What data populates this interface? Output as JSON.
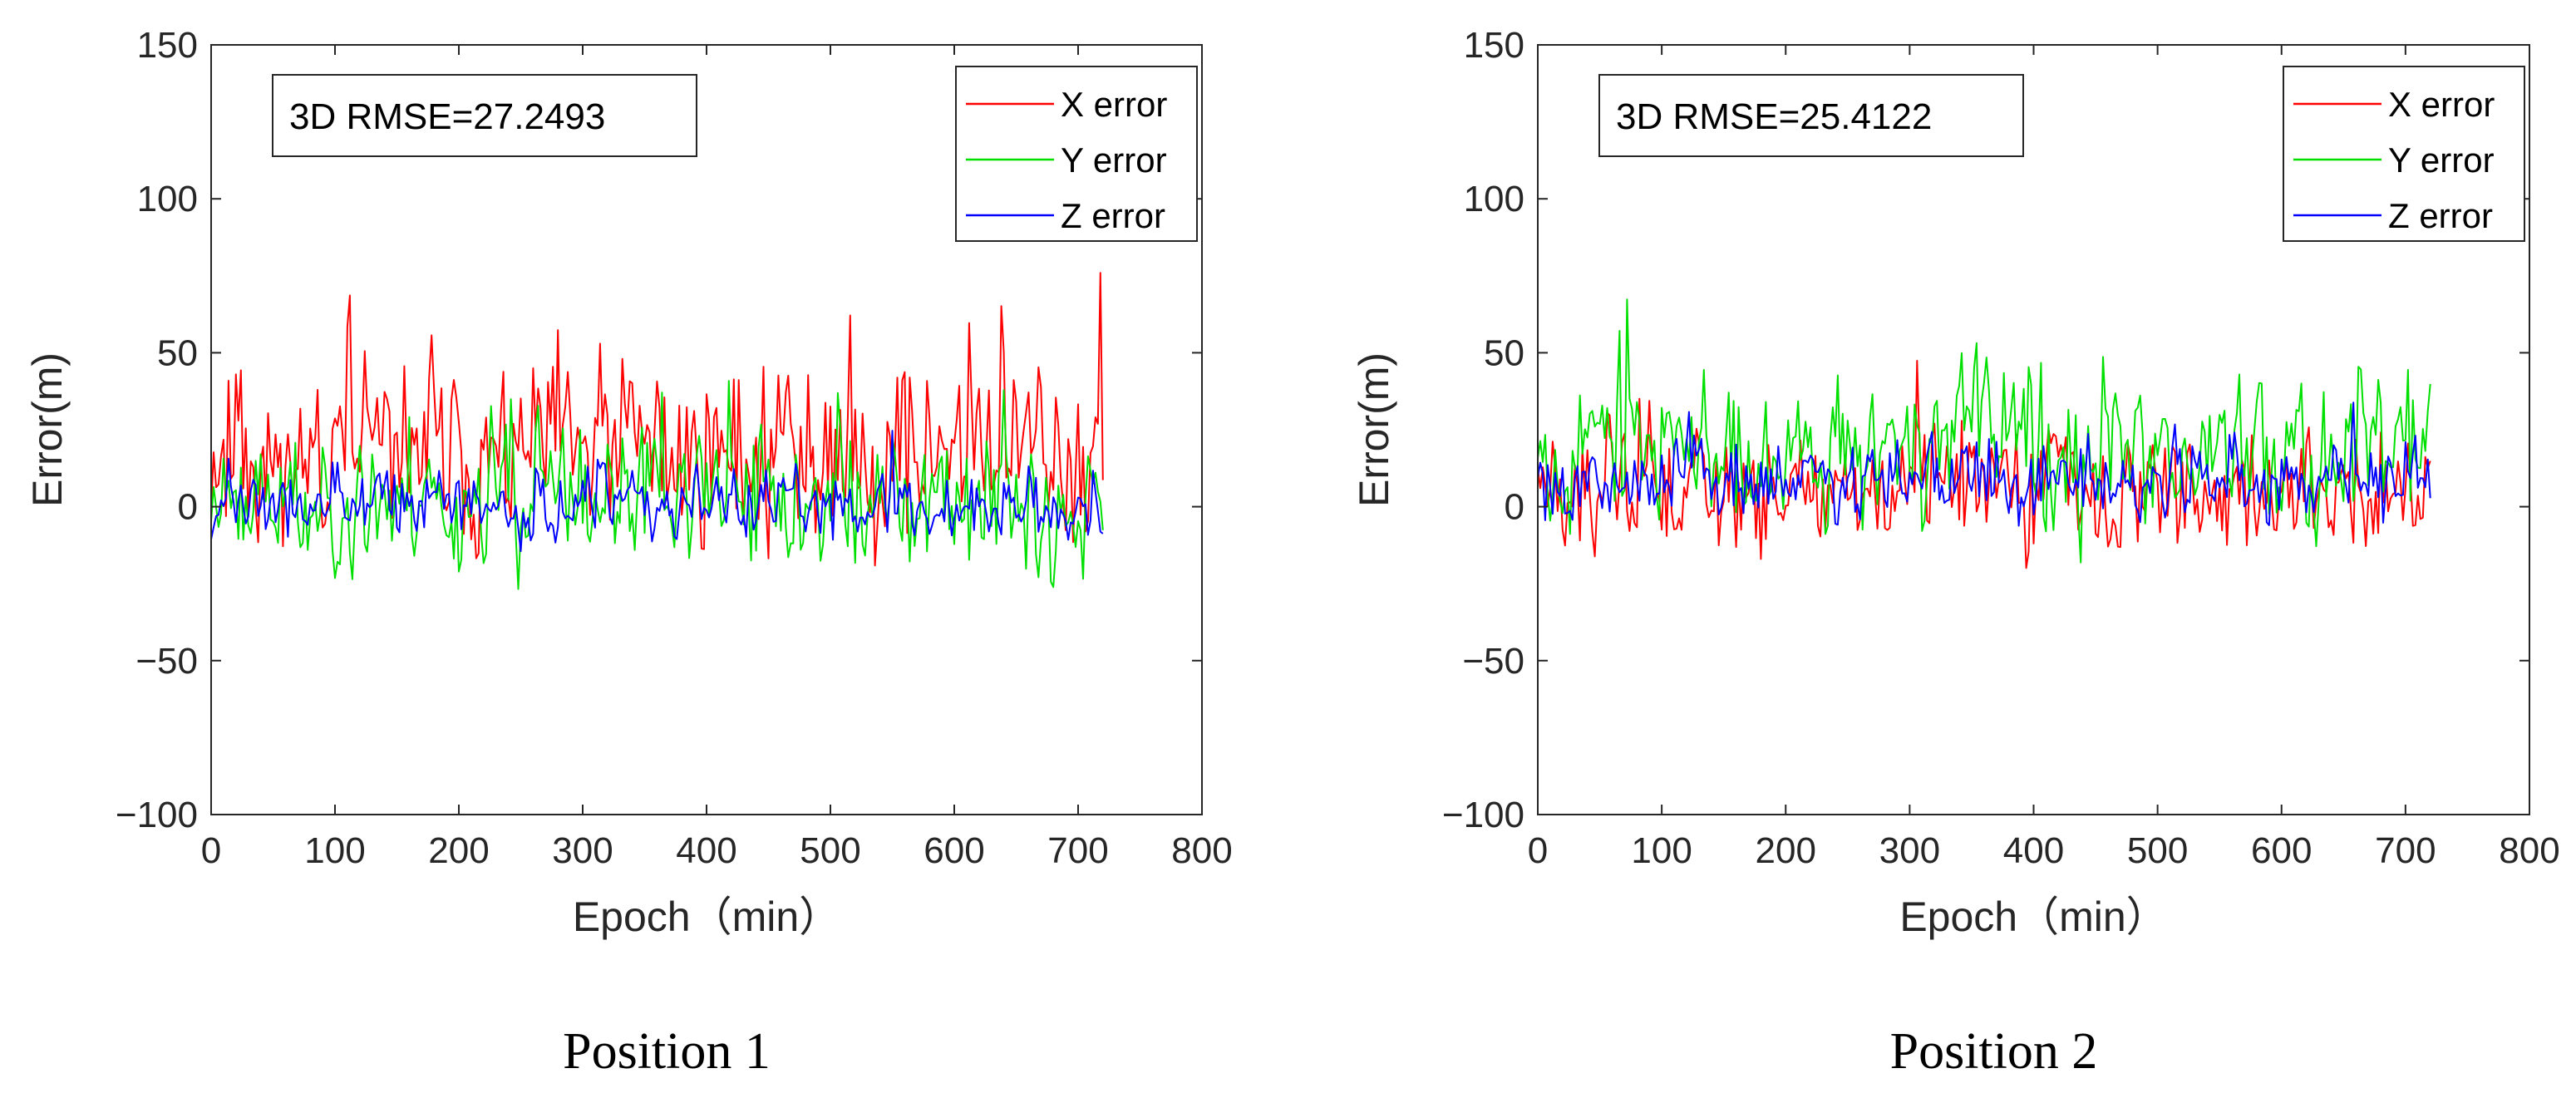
{
  "figure": {
    "captions": [
      "Position 1",
      "Position 2"
    ]
  },
  "chart_data": [
    {
      "type": "line",
      "title": "",
      "caption": "Position 1",
      "annotation": "3D RMSE=27.2493",
      "xlabel": "Epoch（min）",
      "ylabel": "Error(m)",
      "xlim": [
        0,
        800
      ],
      "ylim": [
        -100,
        150
      ],
      "xticks": [
        0,
        100,
        200,
        300,
        400,
        500,
        600,
        700,
        800
      ],
      "yticks": [
        -100,
        -50,
        0,
        50,
        100,
        150
      ],
      "x_range": [
        0,
        720
      ],
      "legend_position": "top-right",
      "series": [
        {
          "name": "X error",
          "color": "#ff0000",
          "mean": 18,
          "spread": 28,
          "seed": 11,
          "clip": [
            -60,
            110
          ]
        },
        {
          "name": "Y error",
          "color": "#00e000",
          "mean": 2,
          "spread": 20,
          "seed": 23,
          "clip": [
            -62,
            48
          ]
        },
        {
          "name": "Z error",
          "color": "#0000ff",
          "mean": 0,
          "spread": 10,
          "seed": 37,
          "clip": [
            -30,
            28
          ]
        }
      ]
    },
    {
      "type": "line",
      "title": "",
      "caption": "Position 2",
      "annotation": "3D RMSE=25.4122",
      "xlabel": "Epoch（min）",
      "ylabel": "Error(m)",
      "xlim": [
        0,
        800
      ],
      "ylim": [
        -100,
        150
      ],
      "xticks": [
        0,
        100,
        200,
        300,
        400,
        500,
        600,
        700,
        800
      ],
      "yticks": [
        -100,
        -50,
        0,
        50,
        100,
        150
      ],
      "x_range": [
        0,
        720
      ],
      "legend_position": "top-right",
      "series": [
        {
          "name": "X error",
          "color": "#ff0000",
          "mean": 5,
          "spread": 18,
          "seed": 51,
          "clip": [
            -46,
            65
          ]
        },
        {
          "name": "Y error",
          "color": "#00e000",
          "mean": 20,
          "spread": 22,
          "seed": 67,
          "clip": [
            -48,
            88
          ]
        },
        {
          "name": "Z error",
          "color": "#0000ff",
          "mean": 8,
          "spread": 12,
          "seed": 79,
          "clip": [
            -30,
            45
          ]
        }
      ]
    }
  ]
}
